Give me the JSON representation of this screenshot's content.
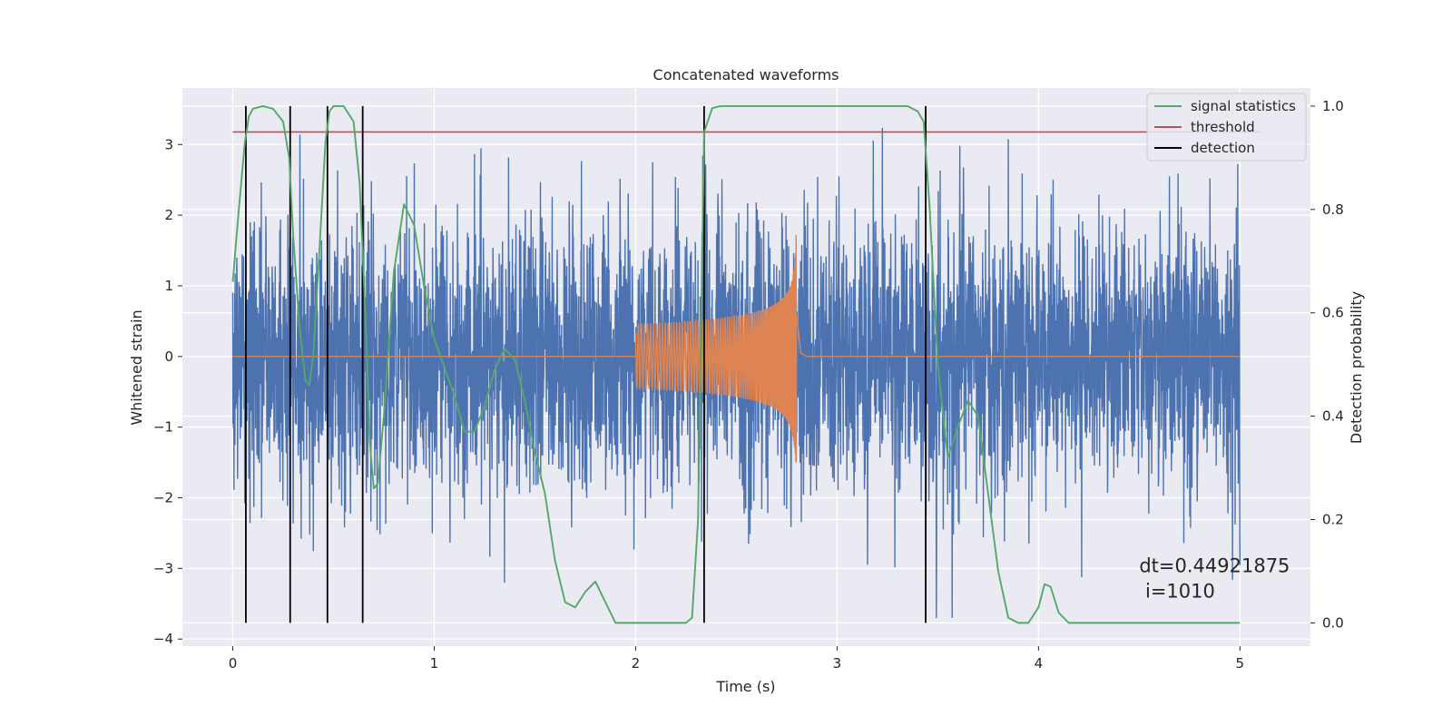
{
  "chart_data": {
    "type": "line",
    "title": "Concatenated waveforms",
    "xlabel": "Time (s)",
    "ylabel": "Whitened strain",
    "y2label": "Detection probability",
    "xlim": [
      -0.25,
      5.35
    ],
    "ylim": [
      -4.1,
      3.8
    ],
    "y2lim": [
      -0.045,
      1.035
    ],
    "xticks": [
      0,
      1,
      2,
      3,
      4,
      5
    ],
    "xtick_labels": [
      "0",
      "1",
      "2",
      "3",
      "4",
      "5"
    ],
    "yticks": [
      -4,
      -3,
      -2,
      -1,
      0,
      1,
      2,
      3
    ],
    "ytick_labels": [
      "−4",
      "−3",
      "−2",
      "−1",
      "0",
      "1",
      "2",
      "3"
    ],
    "y2ticks": [
      0.0,
      0.2,
      0.4,
      0.6,
      0.8,
      1.0
    ],
    "y2tick_labels": [
      "0.0",
      "0.2",
      "0.4",
      "0.6",
      "0.8",
      "1.0"
    ],
    "grid": true,
    "legend_position": "top-right",
    "colors": {
      "noise": "#4c72b0",
      "template": "#dd8452",
      "statistic": "#55a868",
      "threshold": "#c44e52",
      "detection": "#000000",
      "background": "#eaeaf2",
      "grid": "#ffffff"
    },
    "legend": [
      {
        "label": "signal statistics",
        "color": "#55a868"
      },
      {
        "label": "threshold",
        "color": "#c44e52"
      },
      {
        "label": "detection",
        "color": "#000000"
      }
    ],
    "noise_series": {
      "name": "whitened strain",
      "axis": "left",
      "x_range": [
        0,
        5
      ],
      "typical_amplitude": 1.3,
      "max": 3.4,
      "min": -3.7
    },
    "template_series": {
      "name": "injected chirp",
      "axis": "left",
      "flat_value": 0,
      "chirp_start": 2.0,
      "merger_time": 2.8,
      "amplitude_start": 0.45,
      "peak_max": 1.8,
      "peak_min": -1.5
    },
    "statistic_series": {
      "name": "signal statistics",
      "axis": "right",
      "x": [
        0.0,
        0.03,
        0.06,
        0.08,
        0.1,
        0.15,
        0.2,
        0.25,
        0.28,
        0.3,
        0.33,
        0.36,
        0.38,
        0.4,
        0.43,
        0.46,
        0.48,
        0.5,
        0.55,
        0.6,
        0.63,
        0.66,
        0.68,
        0.7,
        0.72,
        0.75,
        0.8,
        0.85,
        0.9,
        0.95,
        1.0,
        1.1,
        1.15,
        1.2,
        1.25,
        1.3,
        1.35,
        1.4,
        1.45,
        1.5,
        1.55,
        1.6,
        1.65,
        1.7,
        1.75,
        1.8,
        1.85,
        1.9,
        2.0,
        2.1,
        2.2,
        2.25,
        2.28,
        2.31,
        2.34,
        2.38,
        2.42,
        2.5,
        3.0,
        3.35,
        3.4,
        3.43,
        3.46,
        3.5,
        3.55,
        3.6,
        3.65,
        3.7,
        3.75,
        3.8,
        3.85,
        3.9,
        3.95,
        4.0,
        4.03,
        4.06,
        4.1,
        4.15,
        4.5,
        5.0
      ],
      "y": [
        0.66,
        0.8,
        0.93,
        0.98,
        0.995,
        1.0,
        0.995,
        0.97,
        0.9,
        0.75,
        0.58,
        0.47,
        0.46,
        0.52,
        0.72,
        0.93,
        0.99,
        1.0,
        1.0,
        0.97,
        0.85,
        0.58,
        0.35,
        0.26,
        0.27,
        0.4,
        0.68,
        0.81,
        0.77,
        0.65,
        0.55,
        0.44,
        0.37,
        0.37,
        0.42,
        0.49,
        0.53,
        0.51,
        0.43,
        0.33,
        0.25,
        0.12,
        0.04,
        0.03,
        0.06,
        0.08,
        0.04,
        0.0,
        0.0,
        0.0,
        0.0,
        0.0,
        0.01,
        0.2,
        0.95,
        0.996,
        1.0,
        1.0,
        1.0,
        1.0,
        0.99,
        0.97,
        0.8,
        0.5,
        0.32,
        0.38,
        0.43,
        0.4,
        0.25,
        0.1,
        0.01,
        0.0,
        0.0,
        0.03,
        0.075,
        0.07,
        0.02,
        0.0,
        0.0,
        0.0
      ]
    },
    "threshold": {
      "value": 0.95,
      "axis": "right",
      "x_range": [
        0,
        5.1
      ]
    },
    "detections": [
      0.065,
      0.285,
      0.47,
      0.645,
      2.34,
      3.44
    ],
    "annotation": {
      "line1": "dt=0.44921875",
      "line2": " i=1010",
      "x": 4.5,
      "y": -3.05
    }
  }
}
